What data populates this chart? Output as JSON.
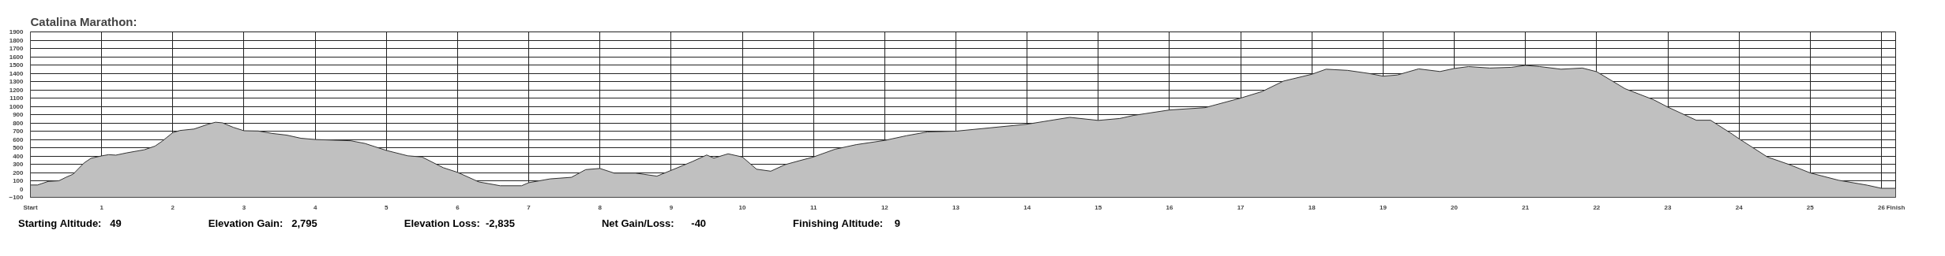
{
  "chart_data": {
    "type": "area",
    "title": "Catalina Marathon:",
    "x": [
      0,
      0.1,
      0.25,
      0.4,
      0.5,
      0.6,
      0.75,
      0.85,
      1.0,
      1.1,
      1.2,
      1.35,
      1.5,
      1.6,
      1.75,
      1.85,
      2.0,
      2.1,
      2.3,
      2.5,
      2.6,
      2.7,
      2.85,
      3.0,
      3.2,
      3.4,
      3.6,
      3.8,
      4.0,
      4.5,
      4.7,
      5.0,
      5.3,
      5.5,
      5.8,
      6.0,
      6.3,
      6.6,
      6.9,
      7.0,
      7.3,
      7.6,
      7.8,
      8.0,
      8.2,
      8.5,
      8.8,
      9.0,
      9.3,
      9.5,
      9.6,
      9.8,
      10.0,
      10.2,
      10.4,
      10.6,
      10.8,
      11.0,
      11.3,
      11.6,
      12.0,
      12.3,
      12.6,
      13.0,
      14.0,
      14.6,
      15.0,
      15.3,
      15.5,
      16.0,
      16.5,
      17.0,
      17.3,
      17.6,
      18.0,
      18.2,
      18.5,
      18.8,
      19.0,
      19.2,
      19.5,
      19.8,
      20.0,
      20.2,
      20.5,
      20.8,
      21.0,
      21.2,
      21.5,
      21.8,
      22.0,
      22.4,
      22.8,
      23.0,
      23.4,
      23.6,
      23.9,
      24.0,
      24.4,
      24.7,
      25.0,
      25.4,
      25.8,
      26.0,
      26.2
    ],
    "series": [
      {
        "color": "#c0c0c0",
        "values": [
          49,
          49,
          92,
          100,
          142,
          180,
          313,
          372,
          401,
          416,
          410,
          437,
          460,
          475,
          519,
          578,
          682,
          708,
          726,
          785,
          808,
          800,
          746,
          705,
          702,
          672,
          652,
          614,
          599,
          584,
          551,
          467,
          402,
          388,
          258,
          202,
          86,
          40,
          40,
          77,
          123,
          142,
          235,
          249,
          193,
          193,
          156,
          226,
          333,
          412,
          374,
          426,
          388,
          240,
          216,
          295,
          342,
          388,
          481,
          537,
          588,
          644,
          691,
          700,
          784,
          867,
          830,
          853,
          891,
          956,
          984,
          1100,
          1179,
          1305,
          1388,
          1449,
          1435,
          1398,
          1365,
          1379,
          1453,
          1421,
          1458,
          1481,
          1463,
          1472,
          1495,
          1481,
          1449,
          1463,
          1419,
          1213,
          1080,
          991,
          832,
          832,
          667,
          608,
          387,
          298,
          195,
          106,
          47,
          9,
          9
        ]
      }
    ],
    "xlim": [
      0,
      26.2
    ],
    "ylim": [
      -100,
      1900
    ],
    "xticks": [
      {
        "value": 0,
        "label": "Start"
      },
      1,
      2,
      3,
      4,
      5,
      6,
      7,
      8,
      9,
      10,
      11,
      12,
      13,
      14,
      15,
      16,
      17,
      18,
      19,
      20,
      21,
      22,
      23,
      24,
      25,
      26,
      {
        "value": 26.2,
        "label": "Finish"
      }
    ],
    "yticks": [
      -100,
      0,
      100,
      200,
      300,
      400,
      500,
      600,
      700,
      800,
      900,
      1000,
      1100,
      1200,
      1300,
      1400,
      1500,
      1600,
      1700,
      1800,
      1900
    ],
    "grid": true,
    "annotations": [
      "Starting Altitude:   49",
      "Elevation Gain:   2,795",
      "Elevation Loss:  -2,835",
      "Net Gain/Loss:      -40",
      "Finishing Altitude:    9"
    ]
  }
}
